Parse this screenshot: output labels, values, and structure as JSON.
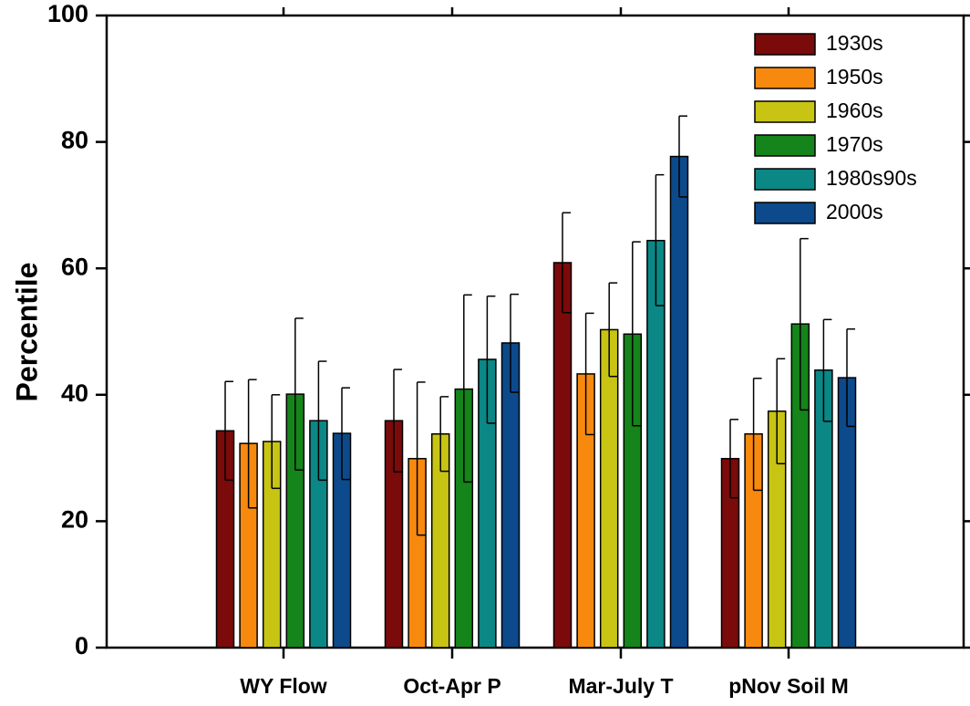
{
  "chart_data": {
    "type": "bar",
    "title": "",
    "xlabel": "",
    "ylabel": "Percentile",
    "ylim": [
      0,
      100
    ],
    "yticks": [
      0,
      20,
      40,
      60,
      80,
      100
    ],
    "grid": false,
    "legend_position": "top-right",
    "categories": [
      "WY Flow",
      "Oct-Apr P",
      "Mar-July T",
      "pNov Soil M"
    ],
    "series": [
      {
        "name": "1930s",
        "color": "#7b0a0a",
        "values": [
          34.3,
          35.9,
          60.9,
          29.9
        ],
        "error_low": [
          26.5,
          27.8,
          53.0,
          23.7
        ],
        "error_high": [
          42.1,
          44.0,
          68.8,
          36.1
        ]
      },
      {
        "name": "1950s",
        "color": "#f7890f",
        "values": [
          32.3,
          29.9,
          43.3,
          33.8
        ],
        "error_low": [
          22.1,
          17.8,
          33.7,
          24.9
        ],
        "error_high": [
          42.4,
          42.0,
          52.9,
          42.6
        ]
      },
      {
        "name": "1960s",
        "color": "#c8c414",
        "values": [
          32.6,
          33.8,
          50.3,
          37.4
        ],
        "error_low": [
          25.2,
          27.9,
          42.9,
          29.1
        ],
        "error_high": [
          40.0,
          39.7,
          57.7,
          45.7
        ]
      },
      {
        "name": "1970s",
        "color": "#15841a",
        "values": [
          40.1,
          40.9,
          49.6,
          51.2
        ],
        "error_low": [
          28.1,
          26.2,
          35.1,
          37.6
        ],
        "error_high": [
          52.1,
          55.8,
          64.2,
          64.7
        ]
      },
      {
        "name": "1980s90s",
        "color": "#0b8785",
        "values": [
          35.9,
          45.6,
          64.4,
          43.9
        ],
        "error_low": [
          26.5,
          35.5,
          54.1,
          35.8
        ],
        "error_high": [
          45.3,
          55.6,
          74.8,
          51.9
        ]
      },
      {
        "name": "2000s",
        "color": "#0c4a8b",
        "values": [
          33.9,
          48.2,
          77.7,
          42.7
        ],
        "error_low": [
          26.6,
          40.4,
          71.3,
          35.0
        ],
        "error_high": [
          41.1,
          55.9,
          84.1,
          50.4
        ]
      }
    ]
  }
}
